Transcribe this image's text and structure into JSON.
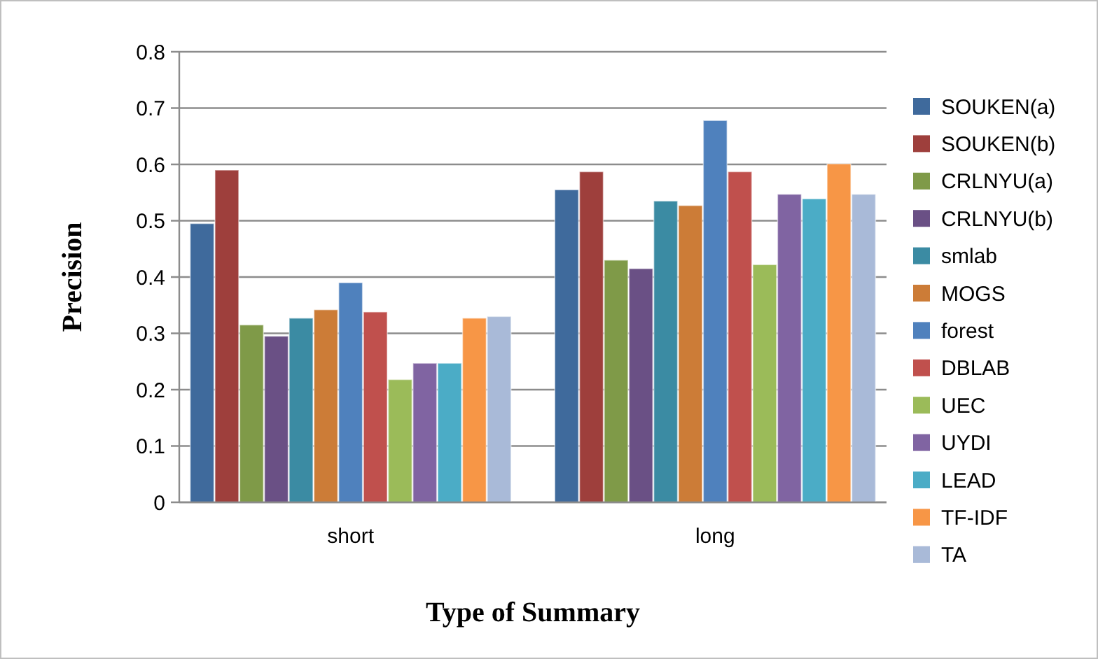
{
  "chart_data": {
    "type": "bar",
    "xlabel": "Type of Summary",
    "ylabel": "Precision",
    "categories": [
      "short",
      "long"
    ],
    "series": [
      {
        "name": "SOUKEN(a)",
        "color": "#3f6a9c",
        "values": [
          0.495,
          0.555
        ]
      },
      {
        "name": "SOUKEN(b)",
        "color": "#9e3f3c",
        "values": [
          0.59,
          0.587
        ]
      },
      {
        "name": "CRLNYU(a)",
        "color": "#7f9a48",
        "values": [
          0.315,
          0.43
        ]
      },
      {
        "name": "CRLNYU(b)",
        "color": "#6a5085",
        "values": [
          0.295,
          0.415
        ]
      },
      {
        "name": "smlab",
        "color": "#3b8ba3",
        "values": [
          0.327,
          0.535
        ]
      },
      {
        "name": "MOGS",
        "color": "#cc7c37",
        "values": [
          0.342,
          0.527
        ]
      },
      {
        "name": "forest",
        "color": "#4f81bd",
        "values": [
          0.39,
          0.678
        ]
      },
      {
        "name": "DBLAB",
        "color": "#c0504d",
        "values": [
          0.338,
          0.587
        ]
      },
      {
        "name": "UEC",
        "color": "#9bbb59",
        "values": [
          0.218,
          0.422
        ]
      },
      {
        "name": "UYDI",
        "color": "#8064a2",
        "values": [
          0.247,
          0.547
        ]
      },
      {
        "name": "LEAD",
        "color": "#4bacc6",
        "values": [
          0.247,
          0.539
        ]
      },
      {
        "name": "TF-IDF",
        "color": "#f79646",
        "values": [
          0.327,
          0.601
        ]
      },
      {
        "name": "TA",
        "color": "#a9bad8",
        "values": [
          0.33,
          0.547
        ]
      }
    ],
    "ylim": [
      0,
      0.8
    ],
    "yticks": [
      0,
      0.1,
      0.2,
      0.3,
      0.4,
      0.5,
      0.6,
      0.7,
      0.8
    ],
    "grid": "y",
    "legend": "right"
  }
}
